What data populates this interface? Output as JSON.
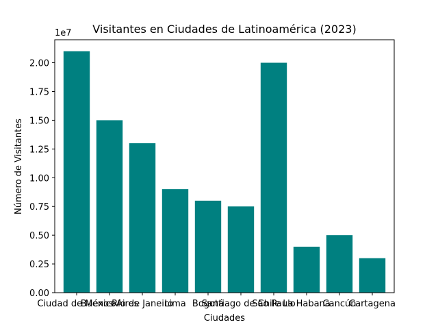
{
  "chart_data": {
    "type": "bar",
    "title": "Visitantes en Ciudades de Latinoamérica (2023)",
    "xlabel": "Ciudades",
    "ylabel": "Número de Visitantes",
    "y_offset_label": "1e7",
    "categories": [
      "Ciudad de México",
      "Buenos Aires",
      "Río de Janeiro",
      "Lima",
      "Bogotá",
      "Santiago de Chile",
      "São Paulo",
      "La Habana",
      "Cancún",
      "Cartagena"
    ],
    "values": [
      21000000,
      15000000,
      13000000,
      9000000,
      8000000,
      7500000,
      20000000,
      4000000,
      5000000,
      3000000
    ],
    "ylim": [
      0,
      22000000
    ],
    "yticks": [
      0,
      2500000,
      5000000,
      7500000,
      10000000,
      12500000,
      15000000,
      17500000,
      20000000
    ],
    "ytick_labels": [
      "0.00",
      "0.25",
      "0.50",
      "0.75",
      "1.00",
      "1.25",
      "1.50",
      "1.75",
      "2.00"
    ],
    "bar_color": "#008080",
    "grid": false
  }
}
